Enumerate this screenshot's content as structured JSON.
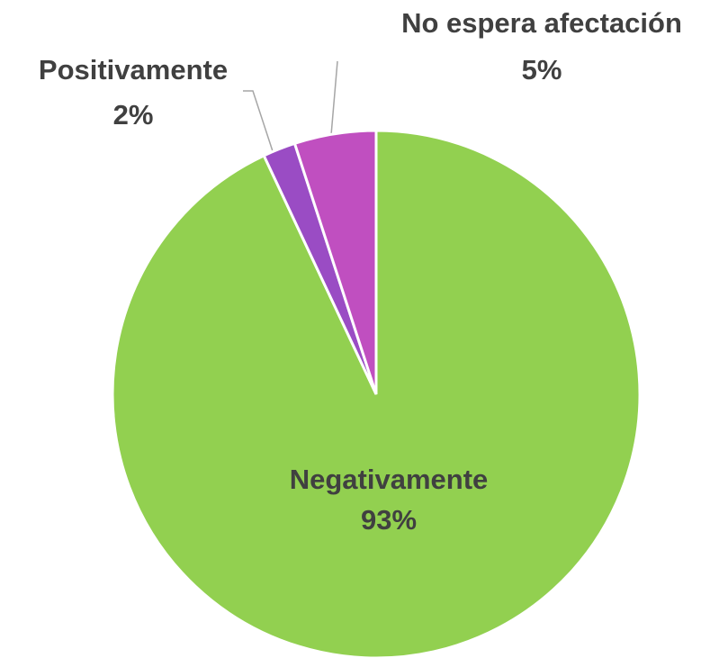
{
  "chart_data": {
    "type": "pie",
    "categories": [
      "Negativamente",
      "Positivamente",
      "No espera afectación"
    ],
    "values": [
      93,
      2,
      5
    ],
    "value_labels": [
      "93%",
      "2%",
      "5%"
    ],
    "colors": [
      "#92d050",
      "#9a4cc4",
      "#c04fc0"
    ]
  }
}
